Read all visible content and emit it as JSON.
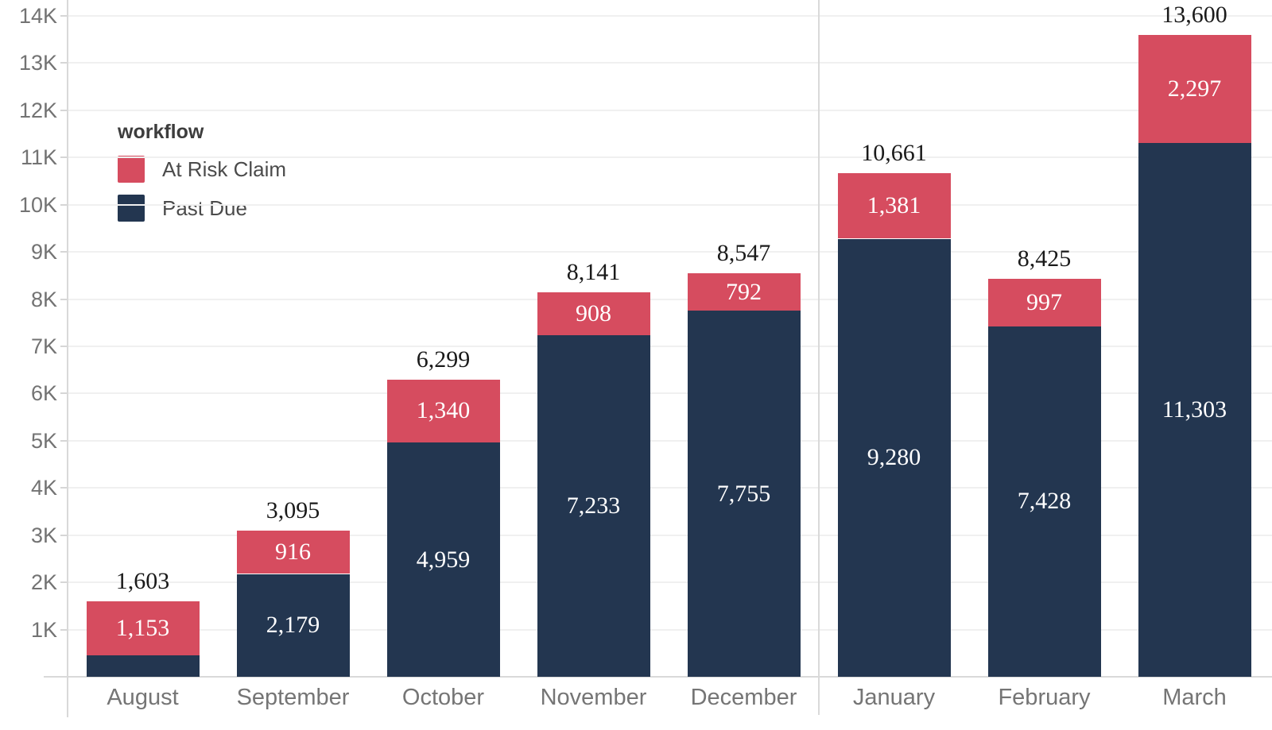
{
  "chart_data": {
    "type": "bar",
    "stacked": true,
    "categories": [
      "August",
      "September",
      "October",
      "November",
      "December",
      "January",
      "February",
      "March"
    ],
    "series": [
      {
        "name": "Past Due",
        "color": "#233650",
        "values": [
          450,
          2179,
          4959,
          7233,
          7755,
          9280,
          7428,
          11303
        ],
        "labels": [
          "",
          "2,179",
          "4,959",
          "7,233",
          "7,755",
          "9,280",
          "7,428",
          "11,303"
        ]
      },
      {
        "name": "At Risk Claim",
        "color": "#d64c5f",
        "values": [
          1153,
          916,
          1340,
          908,
          792,
          1381,
          997,
          2297
        ],
        "labels": [
          "1,153",
          "916",
          "1,340",
          "908",
          "792",
          "1,381",
          "997",
          "2,297"
        ]
      }
    ],
    "totals": [
      1603,
      3095,
      6299,
      8141,
      8547,
      10661,
      8425,
      13600
    ],
    "total_labels": [
      "1,603",
      "3,095",
      "6,299",
      "8,141",
      "8,547",
      "10,661",
      "8,425",
      "13,600"
    ],
    "y_axis": {
      "min": 0,
      "max": 14000,
      "tick_interval": 1000,
      "tick_labels": [
        "1K",
        "2K",
        "3K",
        "4K",
        "5K",
        "6K",
        "7K",
        "8K",
        "9K",
        "10K",
        "11K",
        "12K",
        "13K",
        "14K"
      ]
    },
    "legend": {
      "title": "workflow",
      "position": "upper-left",
      "entries": [
        {
          "label": "At Risk Claim",
          "color": "#d64c5f"
        },
        {
          "label": "Past Due",
          "color": "#233650"
        }
      ]
    },
    "panel_separator_after_index": 4,
    "grid": true,
    "colors": {
      "grid": "#f0f0f0",
      "axis": "#d9d9d9",
      "tick_text": "#737373",
      "month_text": "#757575",
      "total_text": "#1a1a1a",
      "segment_label_text": "#ffffff"
    }
  }
}
